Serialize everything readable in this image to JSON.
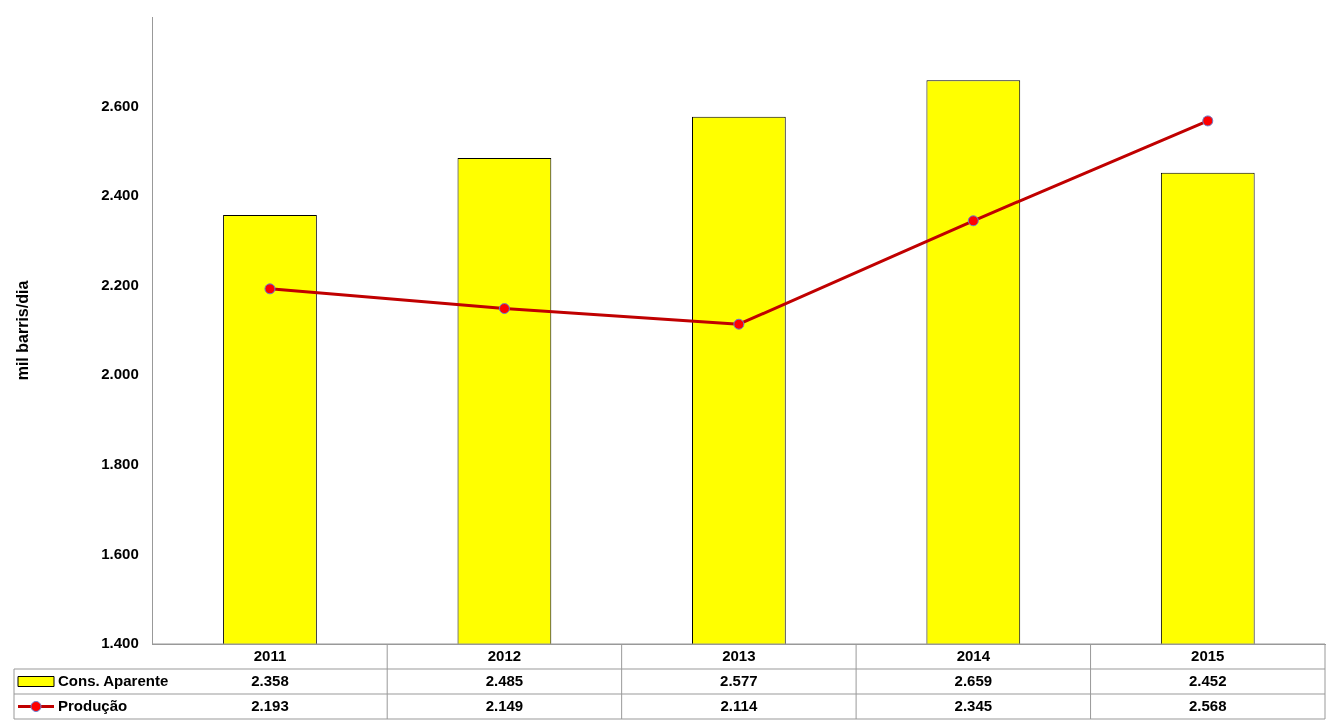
{
  "chart_data": {
    "type": "bar",
    "ylabel": "mil barris/dia",
    "categories": [
      "2011",
      "2012",
      "2013",
      "2014",
      "2015"
    ],
    "series": [
      {
        "name": "Cons. Aparente",
        "color": "#ffff00",
        "values": [
          2358,
          2485,
          2577,
          2659,
          2452
        ],
        "value_labels": [
          "2.358",
          "2.485",
          "2.577",
          "2.659",
          "2.452"
        ]
      },
      {
        "name": "Produção",
        "type": "line",
        "color": "#c00000",
        "values": [
          2193,
          2149,
          2114,
          2345,
          2568
        ],
        "value_labels": [
          "2.193",
          "2.149",
          "2.114",
          "2.345",
          "2.568"
        ]
      }
    ],
    "ylim": [
      1400,
      2800
    ],
    "yticks": [
      {
        "value": 1400,
        "label": "1.400"
      },
      {
        "value": 1600,
        "label": "1.600"
      },
      {
        "value": 1800,
        "label": "1.800"
      },
      {
        "value": 2000,
        "label": "2.000"
      },
      {
        "value": 2200,
        "label": "2.200"
      },
      {
        "value": 2400,
        "label": "2.400"
      },
      {
        "value": 2600,
        "label": "2.600"
      }
    ],
    "legend": "bottom",
    "marker": "circle",
    "line_style": "solid"
  }
}
